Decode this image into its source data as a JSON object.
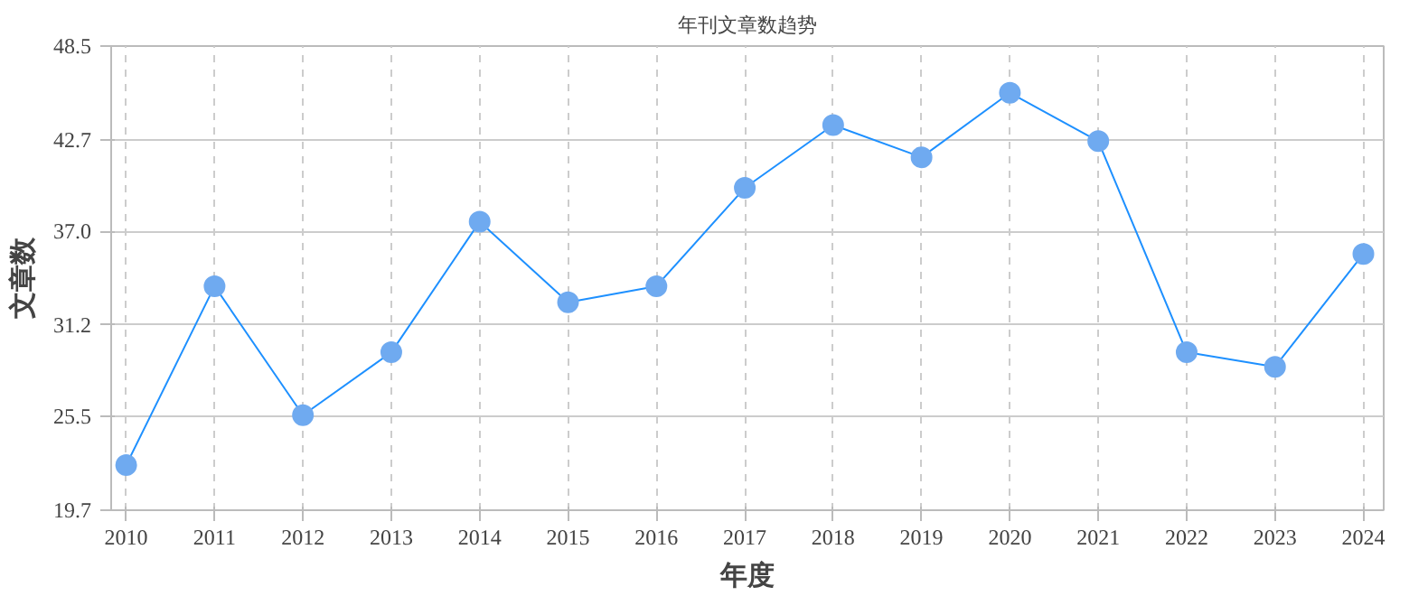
{
  "chart_data": {
    "type": "line",
    "title": "年刊文章数趋势",
    "xlabel": "年度",
    "ylabel": "文章数",
    "categories": [
      "2010",
      "2011",
      "2012",
      "2013",
      "2014",
      "2015",
      "2016",
      "2017",
      "2018",
      "2019",
      "2020",
      "2021",
      "2022",
      "2023",
      "2024"
    ],
    "series": [
      {
        "color": "#1e90ff",
        "values": [
          22.5,
          33.6,
          25.6,
          29.5,
          37.6,
          32.6,
          33.6,
          39.7,
          43.6,
          41.6,
          45.6,
          42.6,
          29.5,
          28.6,
          35.6
        ]
      }
    ],
    "ylim": [
      19.7,
      48.5
    ],
    "yticks": [
      19.7,
      25.5,
      31.2,
      {
        "value": 37,
        "label": "37.0"
      },
      42.7,
      48.5
    ],
    "grid": true,
    "marker": "circle",
    "line_style": "solid"
  }
}
